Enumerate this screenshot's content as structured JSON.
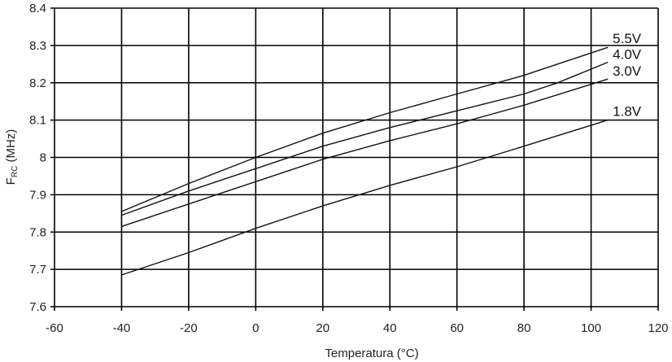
{
  "chart_data": {
    "type": "line",
    "title": "",
    "xlabel": "Temperatura (°C)",
    "ylabel_main": "F",
    "ylabel_sub": "RC",
    "ylabel_unit": " (MHz)",
    "xlim": [
      -60,
      120
    ],
    "ylim": [
      7.6,
      8.4
    ],
    "x_ticks": [
      "-60",
      "-40",
      "-20",
      "0",
      "20",
      "40",
      "60",
      "80",
      "100",
      "120"
    ],
    "y_ticks": [
      "7.6",
      "7.7",
      "7.8",
      "7.9",
      "8",
      "8.1",
      "8.2",
      "8.3",
      "8.4"
    ],
    "grid": true,
    "series": [
      {
        "name": "5.5V",
        "x": [
          -40,
          -20,
          0,
          20,
          40,
          60,
          80,
          105
        ],
        "y": [
          7.855,
          7.93,
          8.0,
          8.065,
          8.12,
          8.17,
          8.22,
          8.295
        ]
      },
      {
        "name": "4.0V",
        "x": [
          -40,
          -20,
          0,
          20,
          40,
          60,
          80,
          90,
          105
        ],
        "y": [
          7.845,
          7.91,
          7.97,
          8.03,
          8.08,
          8.125,
          8.17,
          8.2,
          8.255
        ]
      },
      {
        "name": "3.0V",
        "x": [
          -40,
          -20,
          0,
          20,
          40,
          60,
          80,
          105
        ],
        "y": [
          7.815,
          7.875,
          7.935,
          7.995,
          8.045,
          8.09,
          8.14,
          8.21
        ]
      },
      {
        "name": "1.8V",
        "x": [
          -40,
          -20,
          0,
          20,
          40,
          60,
          80,
          105
        ],
        "y": [
          7.685,
          7.745,
          7.81,
          7.87,
          7.925,
          7.975,
          8.03,
          8.1
        ]
      }
    ]
  }
}
